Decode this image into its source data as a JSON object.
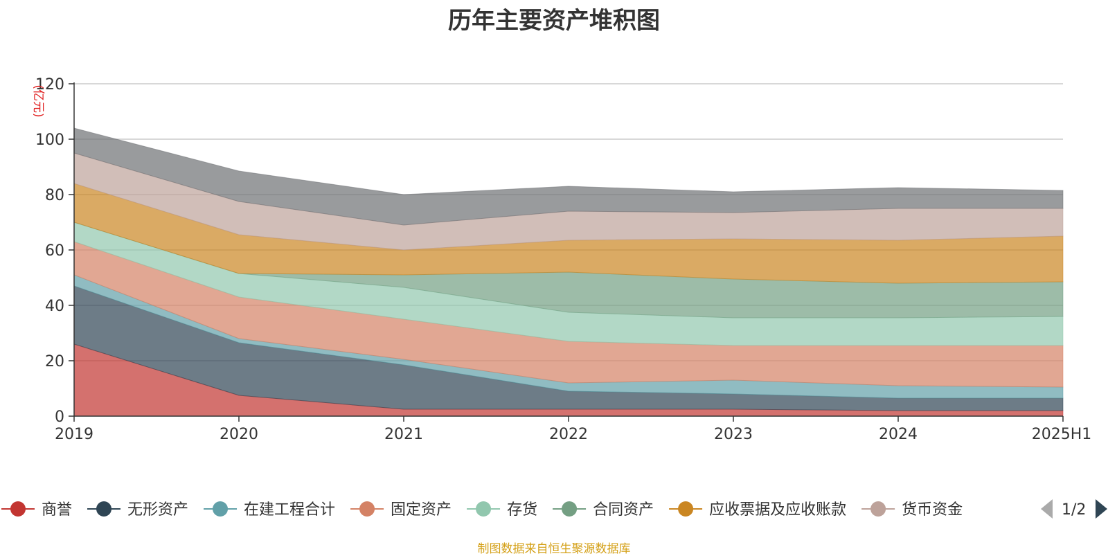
{
  "title": "历年主要资产堆积图",
  "source": "制图数据来自恒生聚源数据库",
  "pagination": {
    "label": "1/2"
  },
  "chart_data": {
    "type": "area",
    "stacked": true,
    "title": "历年主要资产堆积图",
    "ylabel": "(亿元)",
    "ylim": [
      0,
      120
    ],
    "yticks": [
      0,
      20,
      40,
      60,
      80,
      100,
      120
    ],
    "grid": true,
    "legend_position": "bottom",
    "categories": [
      "2019",
      "2020",
      "2021",
      "2022",
      "2023",
      "2024",
      "2025H1"
    ],
    "series": [
      {
        "name": "商誉",
        "values": [
          26,
          7.5,
          2.5,
          2.5,
          2.5,
          2,
          2
        ],
        "color": "#c23531"
      },
      {
        "name": "无形资产",
        "values": [
          21,
          19,
          16,
          6.5,
          5.5,
          4.5,
          4.5
        ],
        "color": "#2f4554"
      },
      {
        "name": "在建工程合计",
        "values": [
          4,
          1.5,
          2,
          3,
          5,
          4.5,
          4
        ],
        "color": "#61a0a8"
      },
      {
        "name": "固定资产",
        "values": [
          12,
          15,
          14.5,
          15,
          12.5,
          14.5,
          15
        ],
        "color": "#d48265"
      },
      {
        "name": "存货",
        "values": [
          7,
          8.5,
          11.5,
          10.5,
          10,
          10,
          10.5
        ],
        "color": "#91c7ae"
      },
      {
        "name": "合同资产",
        "values": [
          0,
          0,
          4.5,
          14.5,
          14,
          12.5,
          12.5
        ],
        "color": "#749f83"
      },
      {
        "name": "应收票据及应收账款",
        "values": [
          14,
          14,
          9,
          11.5,
          14.5,
          15.5,
          16.5
        ],
        "color": "#ca8622"
      },
      {
        "name": "货币资金",
        "values": [
          11,
          12,
          9,
          10.5,
          9.5,
          11.5,
          10
        ],
        "color": "#bda29a"
      },
      {
        "name": "",
        "values": [
          9,
          11,
          11,
          9,
          7.5,
          7.5,
          6.5
        ],
        "color": "#6e7074"
      }
    ]
  }
}
